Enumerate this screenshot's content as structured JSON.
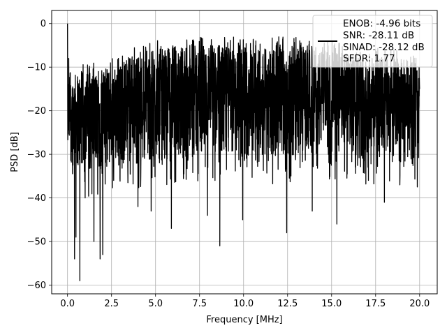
{
  "chart_data": {
    "type": "line",
    "title": "",
    "xlabel": "Frequency [MHz]",
    "ylabel": "PSD [dB]",
    "xlim": [
      -0.9,
      21.0
    ],
    "ylim": [
      -62,
      3
    ],
    "x_ticks": [
      0.0,
      2.5,
      5.0,
      7.5,
      10.0,
      12.5,
      15.0,
      17.5,
      20.0
    ],
    "x_tick_labels": [
      "0.0",
      "2.5",
      "5.0",
      "7.5",
      "10.0",
      "12.5",
      "15.0",
      "17.5",
      "20.0"
    ],
    "y_ticks": [
      0,
      -10,
      -20,
      -30,
      -40,
      -50,
      -60
    ],
    "y_tick_labels": [
      "0",
      "−10",
      "−20",
      "−30",
      "−40",
      "−50",
      "−60"
    ],
    "grid": true,
    "legend_position": "top-right",
    "series": [
      {
        "color": "#000000",
        "legend_lines": [
          "ENOB: -4.96 bits",
          "SNR: -28.11 dB",
          "SINAD: -28.12 dB",
          "SFDR: 1.77"
        ],
        "x_range": [
          0.0,
          20.0
        ],
        "envelope": {
          "x": [
            0.0,
            1.0,
            2.0,
            3.0,
            4.0,
            5.0,
            6.0,
            7.0,
            8.0,
            9.0,
            10.0,
            11.0,
            12.0,
            13.0,
            14.0,
            15.0,
            16.0,
            17.0,
            18.0,
            19.0,
            20.0
          ],
          "upper": [
            -12,
            -11,
            -11,
            -9,
            -7,
            -6,
            -5,
            -5,
            -5,
            -5,
            -5,
            -5,
            -5,
            -5,
            -6,
            -6,
            -7,
            -7,
            -8,
            -8,
            -9
          ],
          "lower": [
            -32,
            -35,
            -34,
            -33,
            -33,
            -32,
            -32,
            -32,
            -32,
            -32,
            -32,
            -32,
            -32,
            -32,
            -31,
            -31,
            -31,
            -32,
            -32,
            -33,
            -33
          ]
        },
        "peaks": [
          {
            "x": 0.0,
            "y": 0.0
          },
          {
            "x": 0.07,
            "y": -8.0
          },
          {
            "x": 0.4,
            "y": -54.0
          },
          {
            "x": 0.48,
            "y": -49.0
          },
          {
            "x": 0.7,
            "y": -59.0
          },
          {
            "x": 1.0,
            "y": -40.0
          },
          {
            "x": 1.5,
            "y": -50.0
          },
          {
            "x": 1.85,
            "y": -54.0
          },
          {
            "x": 2.0,
            "y": -53.0
          },
          {
            "x": 4.0,
            "y": -42.0
          },
          {
            "x": 4.75,
            "y": -43.0
          },
          {
            "x": 5.9,
            "y": -47.0
          },
          {
            "x": 7.95,
            "y": -44.0
          },
          {
            "x": 8.65,
            "y": -51.0
          },
          {
            "x": 9.95,
            "y": -45.0
          },
          {
            "x": 12.45,
            "y": -48.0
          },
          {
            "x": 13.9,
            "y": -43.0
          },
          {
            "x": 15.3,
            "y": -46.0
          },
          {
            "x": 18.0,
            "y": -41.0
          }
        ]
      }
    ]
  }
}
